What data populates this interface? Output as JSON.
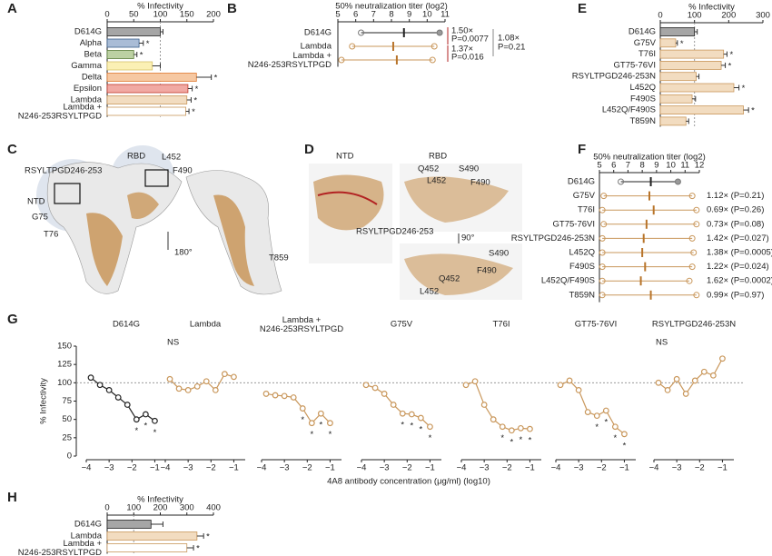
{
  "chart_data": [
    {
      "type": "hbar",
      "panel": "A",
      "xlabel": "% Infectivity",
      "xlim": [
        0,
        200
      ],
      "xticks": [
        0,
        50,
        100,
        150,
        200
      ],
      "refline": 100,
      "categories": [
        "D614G",
        "Alpha",
        "Beta",
        "Gamma",
        "Delta",
        "Epsilon",
        "Lambda",
        "Lambda +\nN246-253RSYLTPGD"
      ],
      "values": [
        100,
        60,
        50,
        85,
        168,
        152,
        150,
        148
      ],
      "errors": [
        5,
        8,
        6,
        15,
        28,
        8,
        8,
        6
      ],
      "sig": [
        null,
        "*",
        "*",
        null,
        "*",
        "*",
        "*",
        "*"
      ],
      "colors": [
        "#a6a6a6",
        "#a9bcd6",
        "#bcd1a3",
        "#fbf0b4",
        "#f6c8a2",
        "#f1a9a3",
        "#f2dcc0",
        "#ffffff"
      ],
      "label_colors": [
        "#222222",
        "#3b5f8a",
        "#5a7d3a",
        "#d8c26a",
        "#e07a30",
        "#c0392b",
        "#c9975b",
        "#c9975b"
      ]
    },
    {
      "type": "dotrange",
      "panel": "B",
      "xlabel": "50% neutralization titer (log2)",
      "xlim": [
        5,
        11
      ],
      "xticks": [
        5,
        6,
        7,
        8,
        9,
        10,
        11
      ],
      "categories": [
        "D614G",
        "Lambda",
        "Lambda +\nN246-253RSYLTPGD"
      ],
      "values": [
        8.7,
        8.1,
        8.3
      ],
      "ranges": [
        [
          6.3,
          10.7
        ],
        [
          5.8,
          10.4
        ],
        [
          5.2,
          10.3
        ]
      ],
      "label_colors": [
        "#222222",
        "#c9975b",
        "#c9975b"
      ],
      "annotations": [
        {
          "text": "1.50×",
          "color": "#b22222"
        },
        {
          "text": "P=0.0077",
          "color": "#b22222"
        },
        {
          "text": "1.37×",
          "color": "#b22222"
        },
        {
          "text": "P=0.016",
          "color": "#b22222"
        },
        {
          "text": "1.08×",
          "color": "#888888"
        },
        {
          "text": "P=0.21",
          "color": "#888888"
        }
      ]
    },
    {
      "type": "hbar",
      "panel": "E",
      "xlabel": "% Infectivity",
      "xlim": [
        0,
        300
      ],
      "xticks": [
        0,
        100,
        200,
        300
      ],
      "refline": 100,
      "categories": [
        "D614G",
        "G75V",
        "T76I",
        "GT75-76VI",
        "RSYLTPGD246-253N",
        "L452Q",
        "F490S",
        "L452Q/F490S",
        "T859N"
      ],
      "values": [
        100,
        45,
        185,
        178,
        105,
        215,
        93,
        243,
        75
      ],
      "errors": [
        8,
        5,
        10,
        12,
        8,
        15,
        10,
        15,
        8
      ],
      "sig": [
        null,
        "*",
        "*",
        "*",
        null,
        "*",
        null,
        "*",
        null
      ],
      "colors": [
        "#a6a6a6",
        "#f2dcc0",
        "#f2dcc0",
        "#f2dcc0",
        "#f2dcc0",
        "#f2dcc0",
        "#f2dcc0",
        "#f2dcc0",
        "#f2dcc0"
      ],
      "label_colors": [
        "#222222",
        "#c9975b",
        "#c9975b",
        "#c9975b",
        "#c9975b",
        "#c9975b",
        "#c9975b",
        "#c9975b",
        "#c9975b"
      ]
    },
    {
      "type": "dotrange",
      "panel": "F",
      "xlabel": "50% neutralization titer (log2)",
      "xlim": [
        5,
        12
      ],
      "xticks": [
        5,
        6,
        7,
        8,
        9,
        10,
        11,
        12
      ],
      "categories": [
        "D614G",
        "G75V",
        "T76I",
        "GT75-76VI",
        "RSYLTPGD246-253N",
        "L452Q",
        "F490S",
        "L452Q/F490S",
        "T859N"
      ],
      "values": [
        8.6,
        8.5,
        8.8,
        8.3,
        8.1,
        8.0,
        8.2,
        7.9,
        8.6
      ],
      "ranges": [
        [
          6.5,
          10.5
        ],
        [
          5.3,
          11.5
        ],
        [
          5.2,
          11.8
        ],
        [
          5.3,
          11.8
        ],
        [
          5.2,
          11.5
        ],
        [
          5.2,
          11.6
        ],
        [
          5.2,
          11.5
        ],
        [
          5.2,
          11.3
        ],
        [
          5.2,
          11.8
        ]
      ],
      "label_colors": [
        "#222222",
        "#c9975b",
        "#c9975b",
        "#c9975b",
        "#c9975b",
        "#c9975b",
        "#c9975b",
        "#c9975b",
        "#c9975b"
      ],
      "fold_labels": [
        null,
        "1.12× (P=0.21)",
        "0.69× (P=0.26)",
        "0.73× (P=0.08)",
        "1.42× (P=0.027)",
        "1.38× (P=0.0005)",
        "1.22× (P=0.024)",
        "1.62× (P=0.0002)",
        "0.99× (P=0.97)"
      ],
      "fold_colors": [
        null,
        "#888888",
        "#888888",
        "#888888",
        "#b22222",
        "#b22222",
        "#b22222",
        "#b22222",
        "#888888"
      ]
    },
    {
      "type": "line_panels",
      "panel": "G",
      "ylabel": "% Infectivity",
      "xlabel": "4A8 antibody concentration (μg/ml) (log10)",
      "ylim": [
        0,
        150
      ],
      "yticks": [
        0,
        25,
        50,
        75,
        100,
        125,
        150
      ],
      "refline": 100,
      "xlim": [
        -4,
        -0.5
      ],
      "xticks": [
        {
          "value": -4,
          "label": "−4"
        },
        {
          "value": -3,
          "label": "−3"
        },
        {
          "value": -2,
          "label": "−2"
        },
        {
          "value": -1,
          "label": "−1"
        }
      ],
      "x": [
        -3.8,
        -3.4,
        -3.0,
        -2.6,
        -2.2,
        -1.8,
        -1.4,
        -1.0
      ],
      "panels": [
        {
          "name": "D614G",
          "color": "#222222",
          "values": [
            107,
            97,
            90,
            80,
            70,
            50,
            57,
            48
          ],
          "sig": [
            null,
            null,
            null,
            null,
            null,
            "*",
            "*",
            "*"
          ]
        },
        {
          "name": "Lambda",
          "color": "#c9975b",
          "note": "NS",
          "values": [
            105,
            92,
            90,
            95,
            102,
            90,
            112,
            108
          ],
          "sig": [
            null,
            null,
            null,
            null,
            null,
            null,
            null,
            null
          ]
        },
        {
          "name": "Lambda +\nN246-253RSYLTPGD",
          "color": "#c9975b",
          "values": [
            85,
            83,
            82,
            80,
            65,
            45,
            58,
            45
          ],
          "sig": [
            null,
            null,
            null,
            null,
            "*",
            "*",
            "*",
            "*"
          ]
        },
        {
          "name": "G75V",
          "color": "#c9975b",
          "values": [
            97,
            93,
            85,
            70,
            58,
            57,
            52,
            40
          ],
          "sig": [
            null,
            null,
            null,
            null,
            "*",
            "*",
            "*",
            "*"
          ]
        },
        {
          "name": "T76I",
          "color": "#c9975b",
          "values": [
            97,
            102,
            70,
            50,
            40,
            35,
            38,
            37
          ],
          "sig": [
            null,
            null,
            null,
            null,
            "*",
            "*",
            "*",
            "*"
          ]
        },
        {
          "name": "GT75-76VI",
          "color": "#c9975b",
          "values": [
            97,
            103,
            90,
            60,
            55,
            62,
            40,
            30
          ],
          "sig": [
            null,
            null,
            null,
            null,
            "*",
            "*",
            "*",
            "*"
          ]
        },
        {
          "name": "RSYLTPGD246-253N",
          "color": "#c9975b",
          "note": "NS",
          "values": [
            100,
            90,
            105,
            85,
            103,
            115,
            110,
            133
          ],
          "sig": [
            null,
            null,
            null,
            null,
            null,
            null,
            null,
            null
          ]
        }
      ]
    },
    {
      "type": "hbar",
      "panel": "H",
      "xlabel": "% Infectivity",
      "xlim": [
        0,
        400
      ],
      "xticks": [
        0,
        100,
        200,
        300,
        400
      ],
      "refline": 100,
      "categories": [
        "D614G",
        "Lambda",
        "Lambda +\nN246-253RSYLTPGD"
      ],
      "values": [
        165,
        338,
        300
      ],
      "errors": [
        45,
        25,
        25
      ],
      "sig": [
        null,
        "*",
        "*"
      ],
      "colors": [
        "#a6a6a6",
        "#f2dcc0",
        "#ffffff"
      ],
      "label_colors": [
        "#222222",
        "#c9975b",
        "#c9975b"
      ]
    }
  ],
  "structure_c": {
    "panel": "C",
    "labels": [
      {
        "text": "RSYLTPGD246-253",
        "color": "#b22222"
      },
      {
        "text": "RBD",
        "color": "#2c4a6b"
      },
      {
        "text": "L452",
        "color": "#b22222"
      },
      {
        "text": "F490",
        "color": "#b22222"
      },
      {
        "text": "NTD",
        "color": "#2c4a6b"
      },
      {
        "text": "G75",
        "color": "#b22222"
      },
      {
        "text": "T76",
        "color": "#b22222"
      },
      {
        "text": "180°",
        "color": "#222222"
      },
      {
        "text": "T859",
        "color": "#b22222"
      }
    ]
  },
  "structure_d": {
    "panel": "D",
    "labels": [
      {
        "text": "NTD",
        "color": "#2c4a6b"
      },
      {
        "text": "RBD",
        "color": "#2c4a6b"
      },
      {
        "text": "Q452",
        "color": "#222222"
      },
      {
        "text": "S490",
        "color": "#222222"
      },
      {
        "text": "L452",
        "color": "#b22222"
      },
      {
        "text": "F490",
        "color": "#b22222"
      },
      {
        "text": "RSYLTPGD246-253",
        "color": "#b22222"
      },
      {
        "text": "90°",
        "color": "#222222"
      },
      {
        "text": "S490",
        "color": "#222222"
      },
      {
        "text": "F490",
        "color": "#b22222"
      },
      {
        "text": "Q452",
        "color": "#222222"
      },
      {
        "text": "L452",
        "color": "#b22222"
      }
    ]
  }
}
